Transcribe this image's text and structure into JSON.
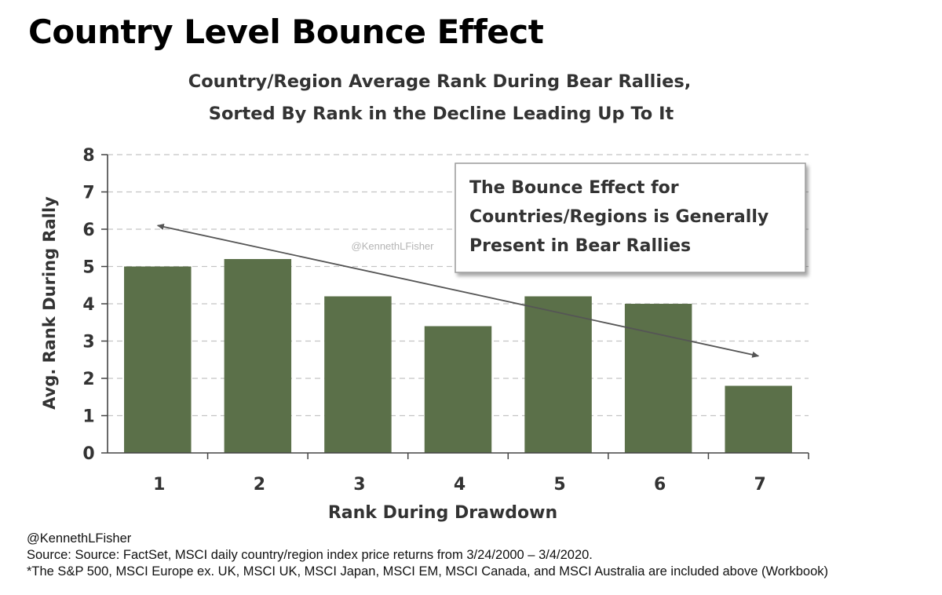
{
  "page": {
    "title": "Country Level Bounce Effect"
  },
  "chart_data": {
    "type": "bar",
    "title_lines": [
      "Country/Region Average Rank During Bear Rallies,",
      "Sorted By Rank in the Decline Leading Up To It"
    ],
    "categories": [
      "1",
      "2",
      "3",
      "4",
      "5",
      "6",
      "7"
    ],
    "values": [
      5.0,
      5.2,
      4.2,
      3.4,
      4.2,
      4.0,
      1.8
    ],
    "xlabel": "Rank During Drawdown",
    "ylabel": "Avg. Rank During Rally",
    "ylim": [
      0,
      8
    ],
    "yticks": [
      "0",
      "1",
      "2",
      "3",
      "4",
      "5",
      "6",
      "7",
      "8"
    ],
    "grid": true,
    "bar_color": "#5b7049",
    "watermark": "@KennethLFisher",
    "annotation": {
      "lines": [
        "The Bounce Effect for",
        "Countries/Regions is Generally",
        "Present in Bear Rallies"
      ],
      "arrow": {
        "from_x": 7.0,
        "from_y": 2.6,
        "to_x": 1.0,
        "to_y": 6.1
      }
    }
  },
  "footer": {
    "handle": "@KennethLFisher",
    "source": "Source: Source: FactSet, MSCI daily country/region index price returns from 3/24/2000 – 3/4/2020.",
    "note": "*The S&P 500, MSCI Europe ex. UK, MSCI UK, MSCI Japan, MSCI EM, MSCI Canada, and MSCI Australia are included above (Workbook)"
  }
}
